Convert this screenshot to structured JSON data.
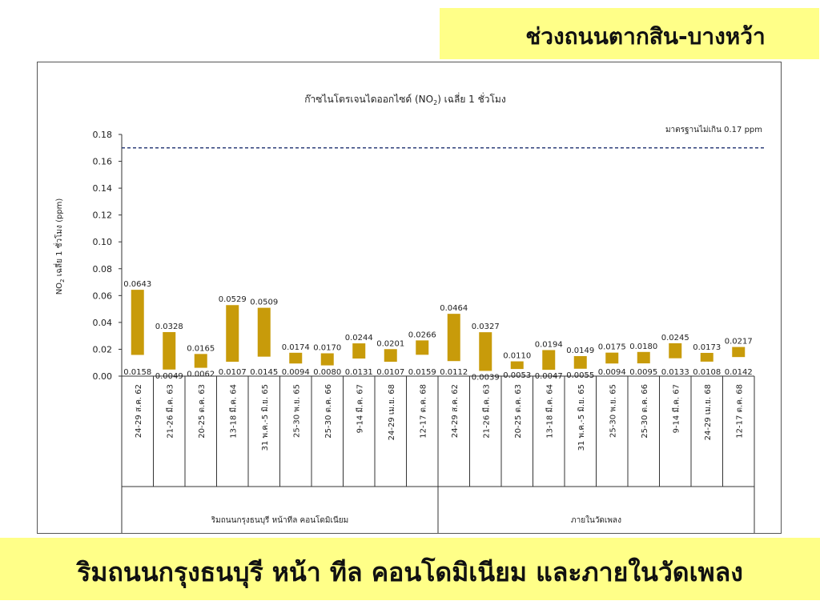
{
  "header": {
    "title": "ช่วงถนนตากสิน-บางหว้า"
  },
  "footer": {
    "caption": "ริมถนนกรุงธนบุรี หน้า ทีล คอนโดมิเนียม และภายในวัดเพลง"
  },
  "colors": {
    "bar": "#c89b0a",
    "standard_line": "#2e3f7a",
    "banner": "#ffff88"
  },
  "chart_data": {
    "type": "bar",
    "title_pre": "ก๊าซไนโตรเจนไดออกไซด์ (NO",
    "title_sub": "2",
    "title_post": ") เฉลี่ย 1 ชั่วโมง",
    "ylabel_pre": "NO",
    "ylabel_sub": "2",
    "ylabel_post": " เฉลี่ย 1 ชั่วโมง (ppm)",
    "ylim": [
      0,
      0.18
    ],
    "yticks": [
      "0.00",
      "0.02",
      "0.04",
      "0.06",
      "0.08",
      "0.10",
      "0.12",
      "0.14",
      "0.16",
      "0.18"
    ],
    "standard": {
      "value": 0.17,
      "label": "มาตรฐานไม่เกิน 0.17 ppm"
    },
    "groups": [
      {
        "label": "ริมถนนกรุงธนบุรี หน้าทีล คอนโดมิเนียม",
        "count": 10
      },
      {
        "label": "ภายในวัดเพลง",
        "count": 10
      }
    ],
    "categories": [
      "24-29 ส.ค. 62",
      "21-26 มี.ค. 63",
      "20-25 ต.ค. 63",
      "13-18 มี.ค. 64",
      "31 พ.ค.-5 มิ.ย. 65",
      "25-30 พ.ย. 65",
      "25-30 ต.ค. 66",
      "9-14 มี.ค. 67",
      "24-29 เม.ย. 68",
      "12-17 ต.ค. 68",
      "24-29 ส.ค. 62",
      "21-26 มี.ค. 63",
      "20-25 ต.ค. 63",
      "13-18 มี.ค. 64",
      "31 พ.ค.-5 มิ.ย. 65",
      "25-30 พ.ย. 65",
      "25-30 ต.ค. 66",
      "9-14 มี.ค. 67",
      "24-29 เม.ย. 68",
      "12-17 ต.ค. 68"
    ],
    "max": [
      0.0643,
      0.0328,
      0.0165,
      0.0529,
      0.0509,
      0.0174,
      0.017,
      0.0244,
      0.0201,
      0.0266,
      0.0464,
      0.0327,
      0.011,
      0.0194,
      0.0149,
      0.0175,
      0.018,
      0.0245,
      0.0173,
      0.0217
    ],
    "min": [
      0.0158,
      0.0049,
      0.0062,
      0.0107,
      0.0145,
      0.0094,
      0.008,
      0.0131,
      0.0107,
      0.0159,
      0.0112,
      0.0039,
      0.0053,
      0.0047,
      0.0055,
      0.0094,
      0.0095,
      0.0133,
      0.0108,
      0.0142
    ],
    "max_labels": [
      "0.0643",
      "0.0328",
      "0.0165",
      "0.0529",
      "0.0509",
      "0.0174",
      "0.0170",
      "0.0244",
      "0.0201",
      "0.0266",
      "0.0464",
      "0.0327",
      "0.0110",
      "0.0194",
      "0.0149",
      "0.0175",
      "0.0180",
      "0.0245",
      "0.0173",
      "0.0217"
    ],
    "min_labels": [
      "0.0158",
      "0.0049",
      "0.0062",
      "0.0107",
      "0.0145",
      "0.0094",
      "0.0080",
      "0.0131",
      "0.0107",
      "0.0159",
      "0.0112",
      "0.0039",
      "0.0053",
      "0.0047",
      "0.0055",
      "0.0094",
      "0.0095",
      "0.0133",
      "0.0108",
      "0.0142"
    ]
  }
}
